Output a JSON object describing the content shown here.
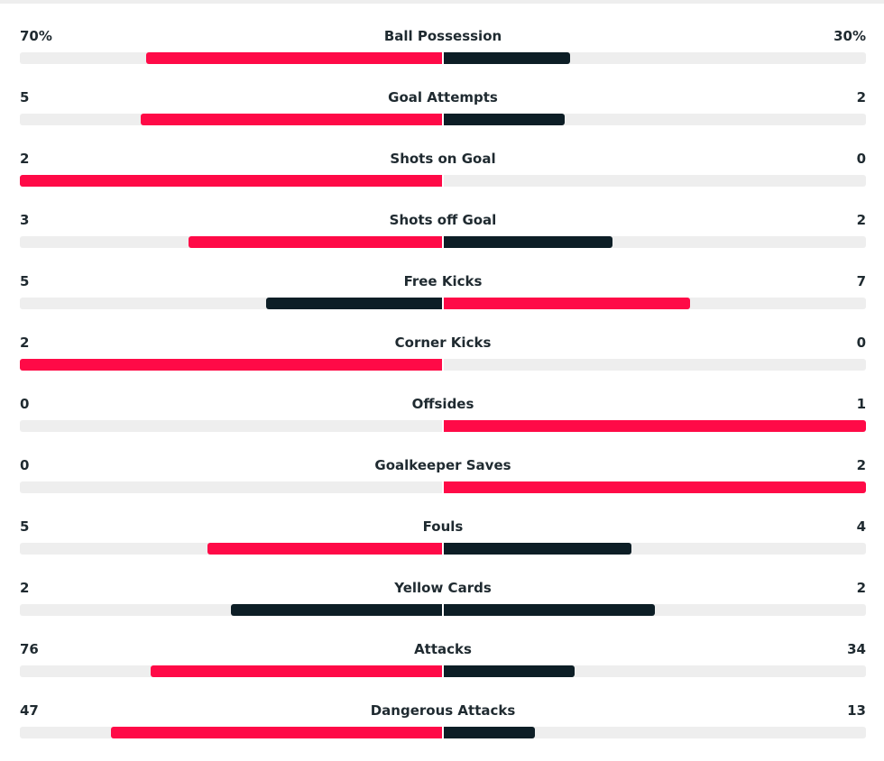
{
  "colors": {
    "leader": "#ff0a47",
    "other": "#0d1e26",
    "track": "#eeeeee"
  },
  "stats": [
    {
      "name": "Ball Possession",
      "left": "70%",
      "right": "30%",
      "lv": 70,
      "rv": 30
    },
    {
      "name": "Goal Attempts",
      "left": "5",
      "right": "2",
      "lv": 5,
      "rv": 2
    },
    {
      "name": "Shots on Goal",
      "left": "2",
      "right": "0",
      "lv": 2,
      "rv": 0
    },
    {
      "name": "Shots off Goal",
      "left": "3",
      "right": "2",
      "lv": 3,
      "rv": 2
    },
    {
      "name": "Free Kicks",
      "left": "5",
      "right": "7",
      "lv": 5,
      "rv": 7
    },
    {
      "name": "Corner Kicks",
      "left": "2",
      "right": "0",
      "lv": 2,
      "rv": 0
    },
    {
      "name": "Offsides",
      "left": "0",
      "right": "1",
      "lv": 0,
      "rv": 1
    },
    {
      "name": "Goalkeeper Saves",
      "left": "0",
      "right": "2",
      "lv": 0,
      "rv": 2
    },
    {
      "name": "Fouls",
      "left": "5",
      "right": "4",
      "lv": 5,
      "rv": 4
    },
    {
      "name": "Yellow Cards",
      "left": "2",
      "right": "2",
      "lv": 2,
      "rv": 2
    },
    {
      "name": "Attacks",
      "left": "76",
      "right": "34",
      "lv": 76,
      "rv": 34
    },
    {
      "name": "Dangerous Attacks",
      "left": "47",
      "right": "13",
      "lv": 47,
      "rv": 13
    }
  ]
}
